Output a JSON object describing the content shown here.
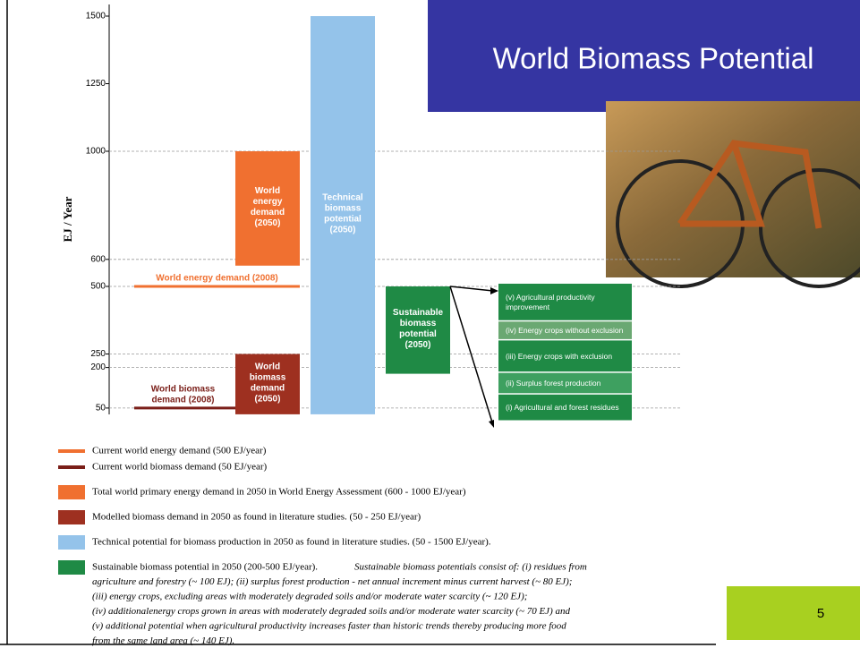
{
  "chart_data": {
    "type": "range-bar",
    "title": "World Biomass Potential",
    "page_number": "5",
    "y_label": "EJ / Year",
    "ylim": [
      0,
      1500
    ],
    "yticks": [
      50,
      200,
      250,
      500,
      600,
      1000,
      1250,
      1500
    ],
    "gridlines": [
      50,
      200,
      250,
      500,
      600,
      1000
    ],
    "bars": [
      {
        "label_lines": [
          "World",
          "energy",
          "demand",
          "(2050)"
        ],
        "low": 600,
        "high": 1000,
        "color": "#f07030"
      },
      {
        "label_lines": [
          "World",
          "biomass",
          "demand",
          "(2050)"
        ],
        "low": 50,
        "high": 250,
        "color": "#9e3020"
      },
      {
        "label_lines": [
          "Technical",
          "biomass",
          "potential",
          "(2050)"
        ],
        "low": 50,
        "high": 1500,
        "color": "#94c3ea"
      },
      {
        "label_lines": [
          "Sustainable",
          "biomass",
          "potential",
          "(2050)"
        ],
        "low": 200,
        "high": 500,
        "color": "#1f8a45"
      }
    ],
    "levels": [
      {
        "label_lines": [
          "World energy demand (2008)"
        ],
        "value": 500,
        "color": "#f07030"
      },
      {
        "label_lines": [
          "World biomass",
          "demand (2008)"
        ],
        "value": 50,
        "color": "#7a1e18"
      }
    ],
    "segments": [
      {
        "label_lines": [
          "(i) Agricultural and  forest residues"
        ],
        "value": 100,
        "color": "#1f8a45"
      },
      {
        "label_lines": [
          "(ii) Surplus forest production"
        ],
        "value": 80,
        "color": "#3ea060"
      },
      {
        "label_lines": [
          "(iii) Energy crops with exclusion"
        ],
        "value": 120,
        "color": "#1f8a45"
      },
      {
        "label_lines": [
          "(iv) Energy crops without exclusion"
        ],
        "value": 70,
        "color": "#6aa872"
      },
      {
        "label_lines": [
          "(v) Agricultural productivity",
          "improvement"
        ],
        "value": 140,
        "color": "#1f8a45"
      }
    ],
    "legend": [
      {
        "shape": "line",
        "color": "#f07030",
        "text": "Current world energy demand (500 EJ/year)"
      },
      {
        "shape": "line",
        "color": "#7a1e18",
        "text": "Current world biomass demand (50 EJ/year)"
      },
      {
        "shape": "box",
        "color": "#f07030",
        "text": "Total world primary energy demand in 2050 in World Energy Assessment (600 - 1000 EJ/year)"
      },
      {
        "shape": "box",
        "color": "#9e3020",
        "text": "Modelled biomass demand in 2050 as found in literature studies. (50 - 250 EJ/year)"
      },
      {
        "shape": "box",
        "color": "#94c3ea",
        "text": "Technical potential for biomass production in 2050 as found in literature studies. (50 - 1500 EJ/year)."
      },
      {
        "shape": "box",
        "color": "#1f8a45",
        "text": "Sustainable biomass potential in 2050 (200-500 EJ/year).",
        "detail_lines": [
          "Sustainable biomass potentials consist of: (i) residues from",
          "agriculture and forestry (~ 100 EJ); (ii) surplus forest production - net annual increment minus current harvest (~ 80 EJ);",
          "(iii) energy crops, excluding areas with moderately degraded soils and/or moderate water scarcity (~ 120 EJ);",
          "(iv) additionalenergy crops grown in areas with moderately degraded soils and/or moderate water scarcity (~ 70 EJ) and",
          "(v) additional potential when agricultural productivity increases faster than historic trends thereby producing more food",
          "from the same land area (~ 140 EJ)."
        ]
      }
    ]
  }
}
